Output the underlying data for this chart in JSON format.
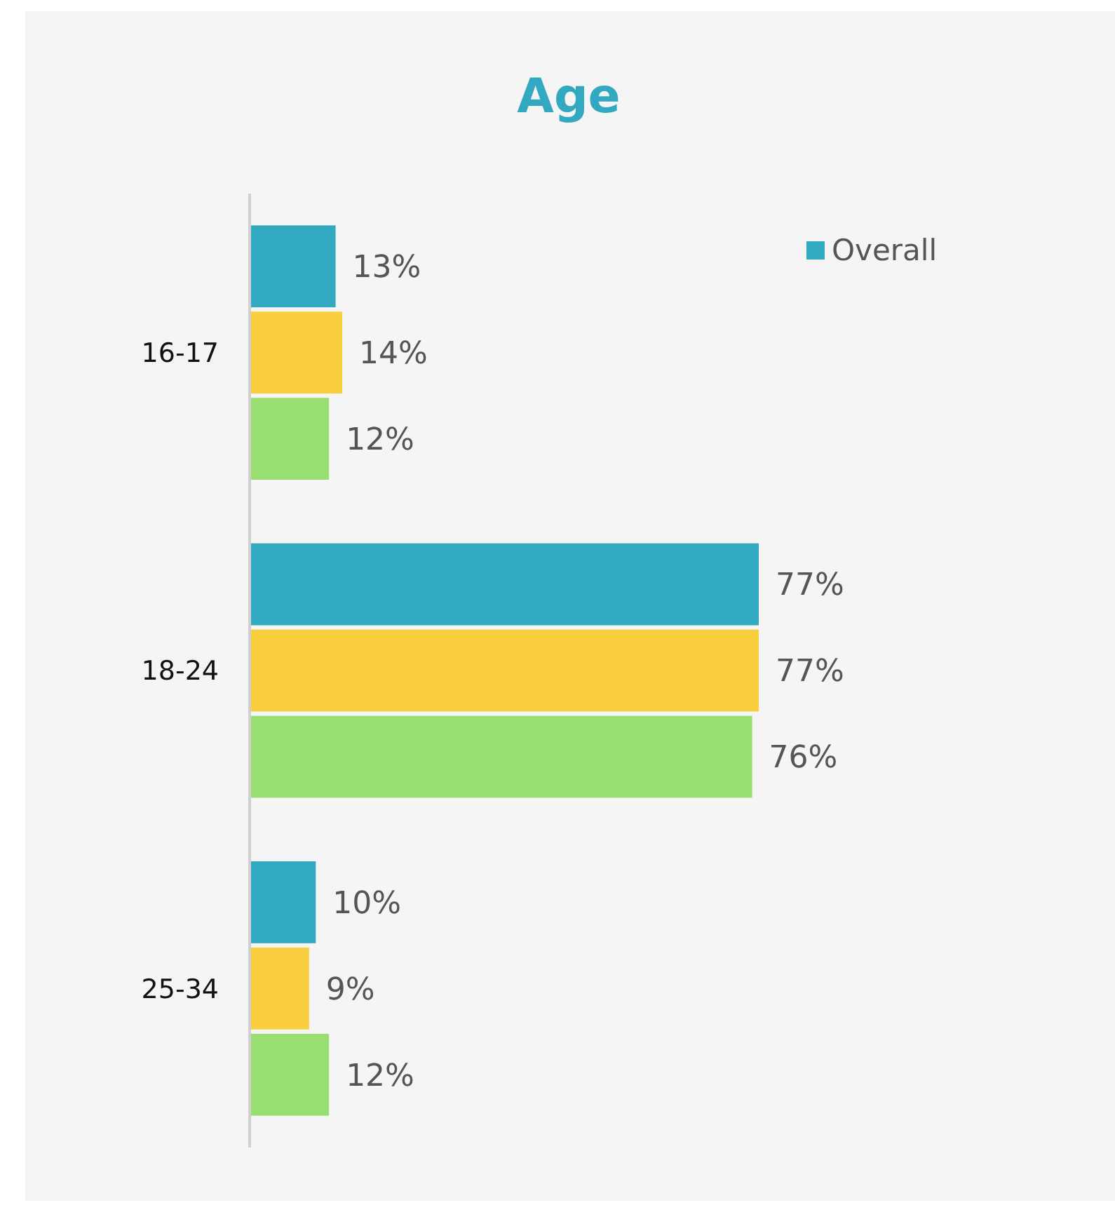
{
  "chart_data": {
    "type": "bar",
    "orientation": "horizontal",
    "title": "Age",
    "categories": [
      "16-17",
      "18-24",
      "25-34"
    ],
    "series": [
      {
        "name": "Overall",
        "color": "#31a9c1",
        "values": [
          13,
          77,
          10
        ],
        "value_labels": [
          "13%",
          "77%",
          "10%"
        ]
      },
      {
        "color": "#f9cf3f",
        "values": [
          14,
          77,
          9
        ],
        "value_labels": [
          "14%",
          "77%",
          "9%"
        ]
      },
      {
        "color": "#98de72",
        "values": [
          12,
          76,
          12
        ],
        "value_labels": [
          "12%",
          "76%",
          "12%"
        ]
      }
    ],
    "legend": "top right"
  }
}
